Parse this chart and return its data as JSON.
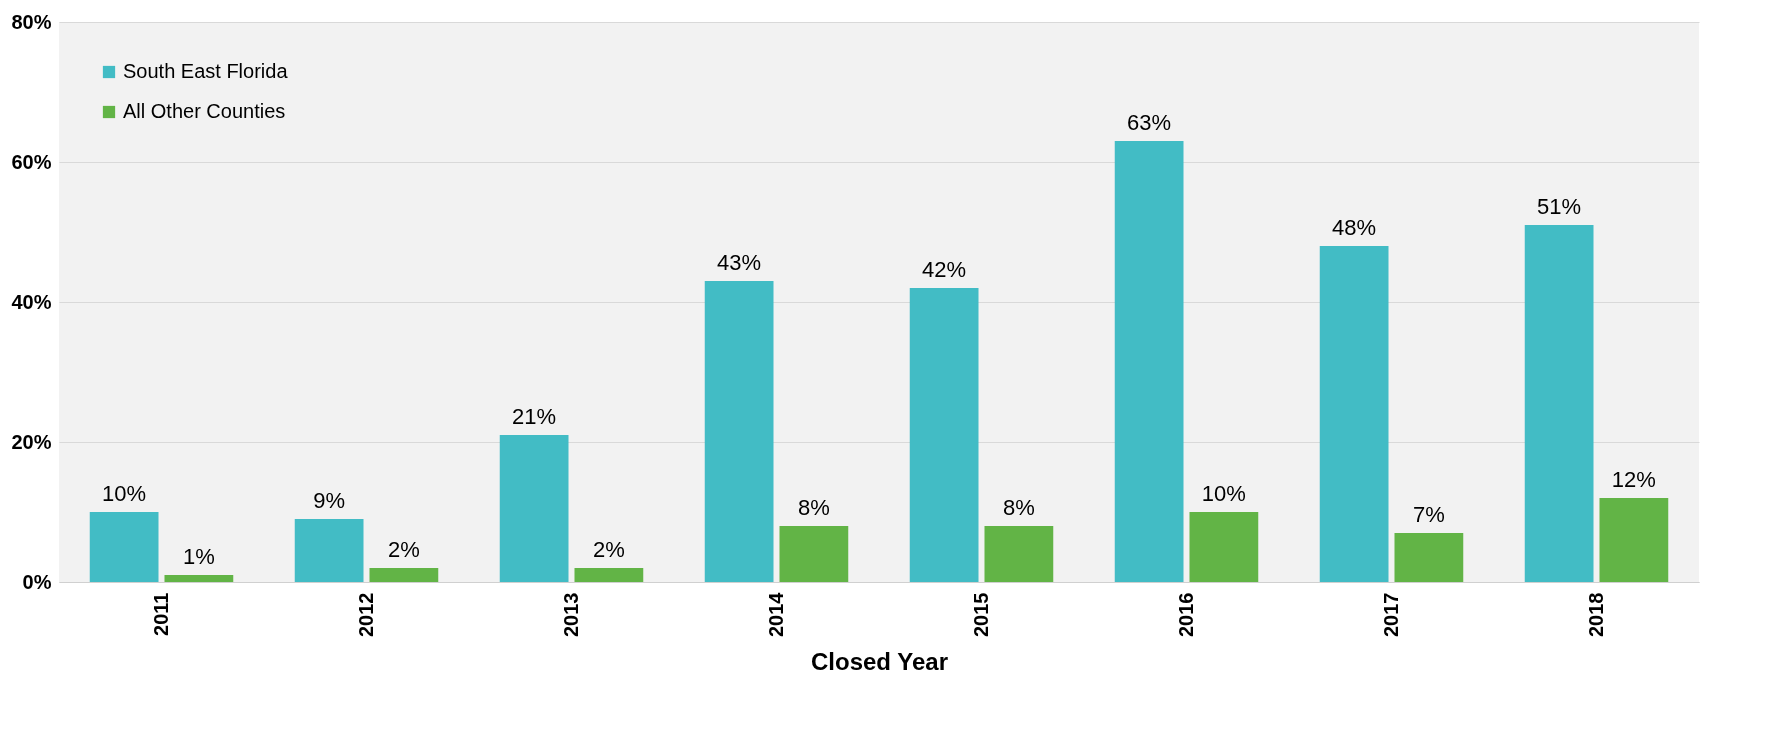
{
  "chart_data": {
    "type": "bar",
    "xlabel": "Closed Year",
    "categories": [
      "2011",
      "2012",
      "2013",
      "2014",
      "2015",
      "2016",
      "2017",
      "2018"
    ],
    "series": [
      {
        "name": "South East Florida",
        "color": "#42bcc5",
        "values": [
          10,
          9,
          21,
          43,
          42,
          63,
          48,
          51
        ],
        "value_labels": [
          "10%",
          "9%",
          "21%",
          "43%",
          "42%",
          "63%",
          "48%",
          "51%"
        ]
      },
      {
        "name": "All Other Counties",
        "color": "#62b446",
        "values": [
          1,
          2,
          2,
          8,
          8,
          10,
          7,
          12
        ],
        "value_labels": [
          "1%",
          "2%",
          "2%",
          "8%",
          "8%",
          "10%",
          "7%",
          "12%"
        ]
      }
    ],
    "ylim": [
      0,
      80
    ],
    "yticks": [
      {
        "value": 0,
        "label": "0%"
      },
      {
        "value": 20,
        "label": "20%"
      },
      {
        "value": 40,
        "label": "40%"
      },
      {
        "value": 60,
        "label": "60%"
      },
      {
        "value": 80,
        "label": "80%"
      }
    ],
    "grid": "y",
    "legend": "top left"
  }
}
